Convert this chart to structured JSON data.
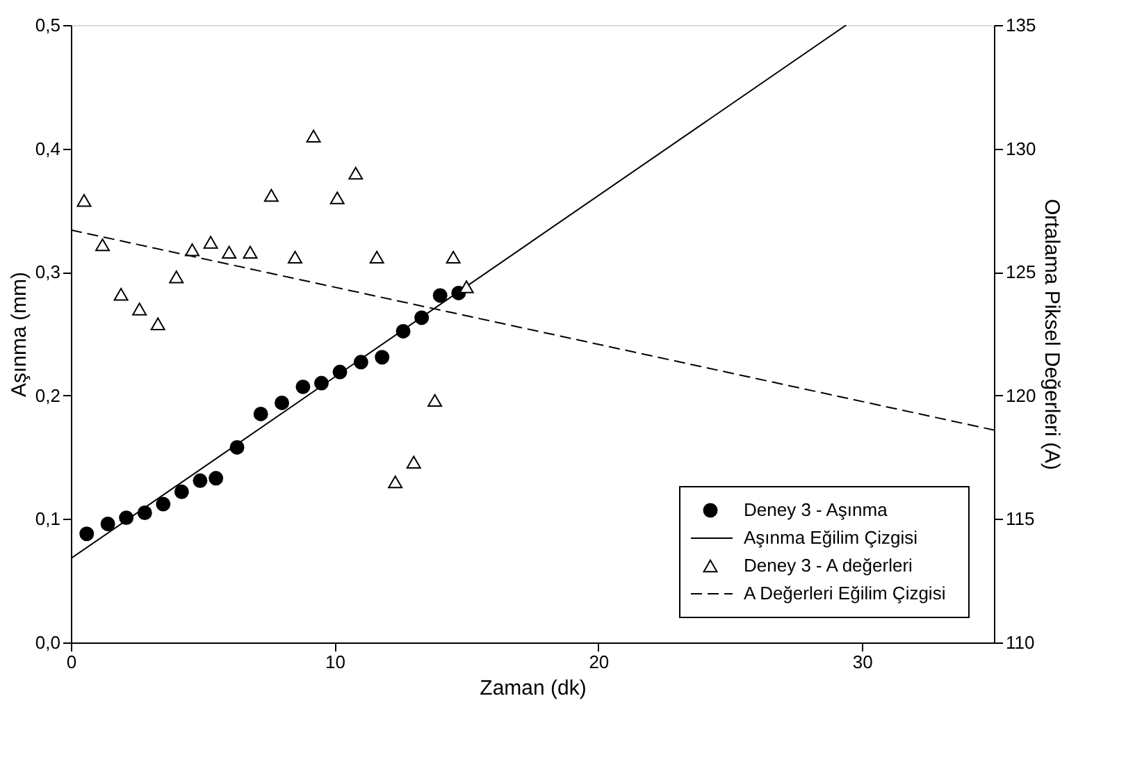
{
  "chart_data": {
    "type": "scatter",
    "xlabel": "Zaman (dk)",
    "ylabel": "Aşınma (mm)",
    "y2label": "Ortalama Piksel Değerleri (A)",
    "xlim": [
      0,
      35
    ],
    "xticks": [
      0,
      10,
      20,
      30
    ],
    "ylim": [
      0,
      0.5
    ],
    "yticks": [
      {
        "value": 0,
        "label": "0,0"
      },
      {
        "value": 0.1,
        "label": "0,1"
      },
      {
        "value": 0.2,
        "label": "0,2"
      },
      {
        "value": 0.3,
        "label": "0,3"
      },
      {
        "value": 0.4,
        "label": "0,4"
      },
      {
        "value": 0.5,
        "label": "0,5"
      }
    ],
    "y2lim": [
      110,
      135
    ],
    "y2ticks": [
      110,
      115,
      120,
      125,
      130,
      135
    ],
    "grid": false,
    "legend": "bottom right",
    "series": [
      {
        "name": "Deney 3 - Aşınma",
        "marker": "circle",
        "color": "#000000",
        "x": [
          0.6,
          1.4,
          2.1,
          2.8,
          3.5,
          4.2,
          4.9,
          5.5,
          6.3,
          7.2,
          8.0,
          8.8,
          9.5,
          10.2,
          11.0,
          11.8,
          12.6,
          13.3,
          14.0,
          14.7
        ],
        "values": [
          0.088,
          0.096,
          0.101,
          0.105,
          0.112,
          0.122,
          0.131,
          0.133,
          0.158,
          0.185,
          0.194,
          0.207,
          0.21,
          0.219,
          0.227,
          0.231,
          0.252,
          0.263,
          0.281,
          0.283
        ]
      },
      {
        "name": "Aşınma Eğilim Çizgisi",
        "type": "line",
        "line_style": "solid",
        "color": "#000000",
        "x": [
          0,
          29.4
        ],
        "values": [
          0.068,
          0.5
        ]
      },
      {
        "name": "Deney 3 - A değerleri",
        "marker": "triangle",
        "axis": "y2",
        "color": "#000000",
        "x": [
          0.5,
          1.2,
          1.9,
          2.6,
          3.3,
          4.0,
          4.6,
          5.3,
          6.0,
          6.8,
          7.6,
          8.5,
          9.2,
          10.1,
          10.8,
          11.6,
          12.3,
          13.0,
          13.8,
          14.5,
          15.0
        ],
        "values": [
          127.9,
          126.1,
          124.1,
          123.5,
          122.9,
          124.8,
          125.9,
          126.2,
          125.8,
          125.8,
          128.1,
          125.6,
          130.5,
          128.0,
          129.0,
          125.6,
          116.5,
          117.3,
          119.8,
          125.6,
          124.4
        ]
      },
      {
        "name": "A Değerleri Eğilim Çizgisi",
        "type": "line",
        "line_style": "dashed",
        "axis": "y2",
        "color": "#000000",
        "x": [
          0,
          35
        ],
        "values": [
          126.7,
          118.6
        ]
      }
    ]
  }
}
